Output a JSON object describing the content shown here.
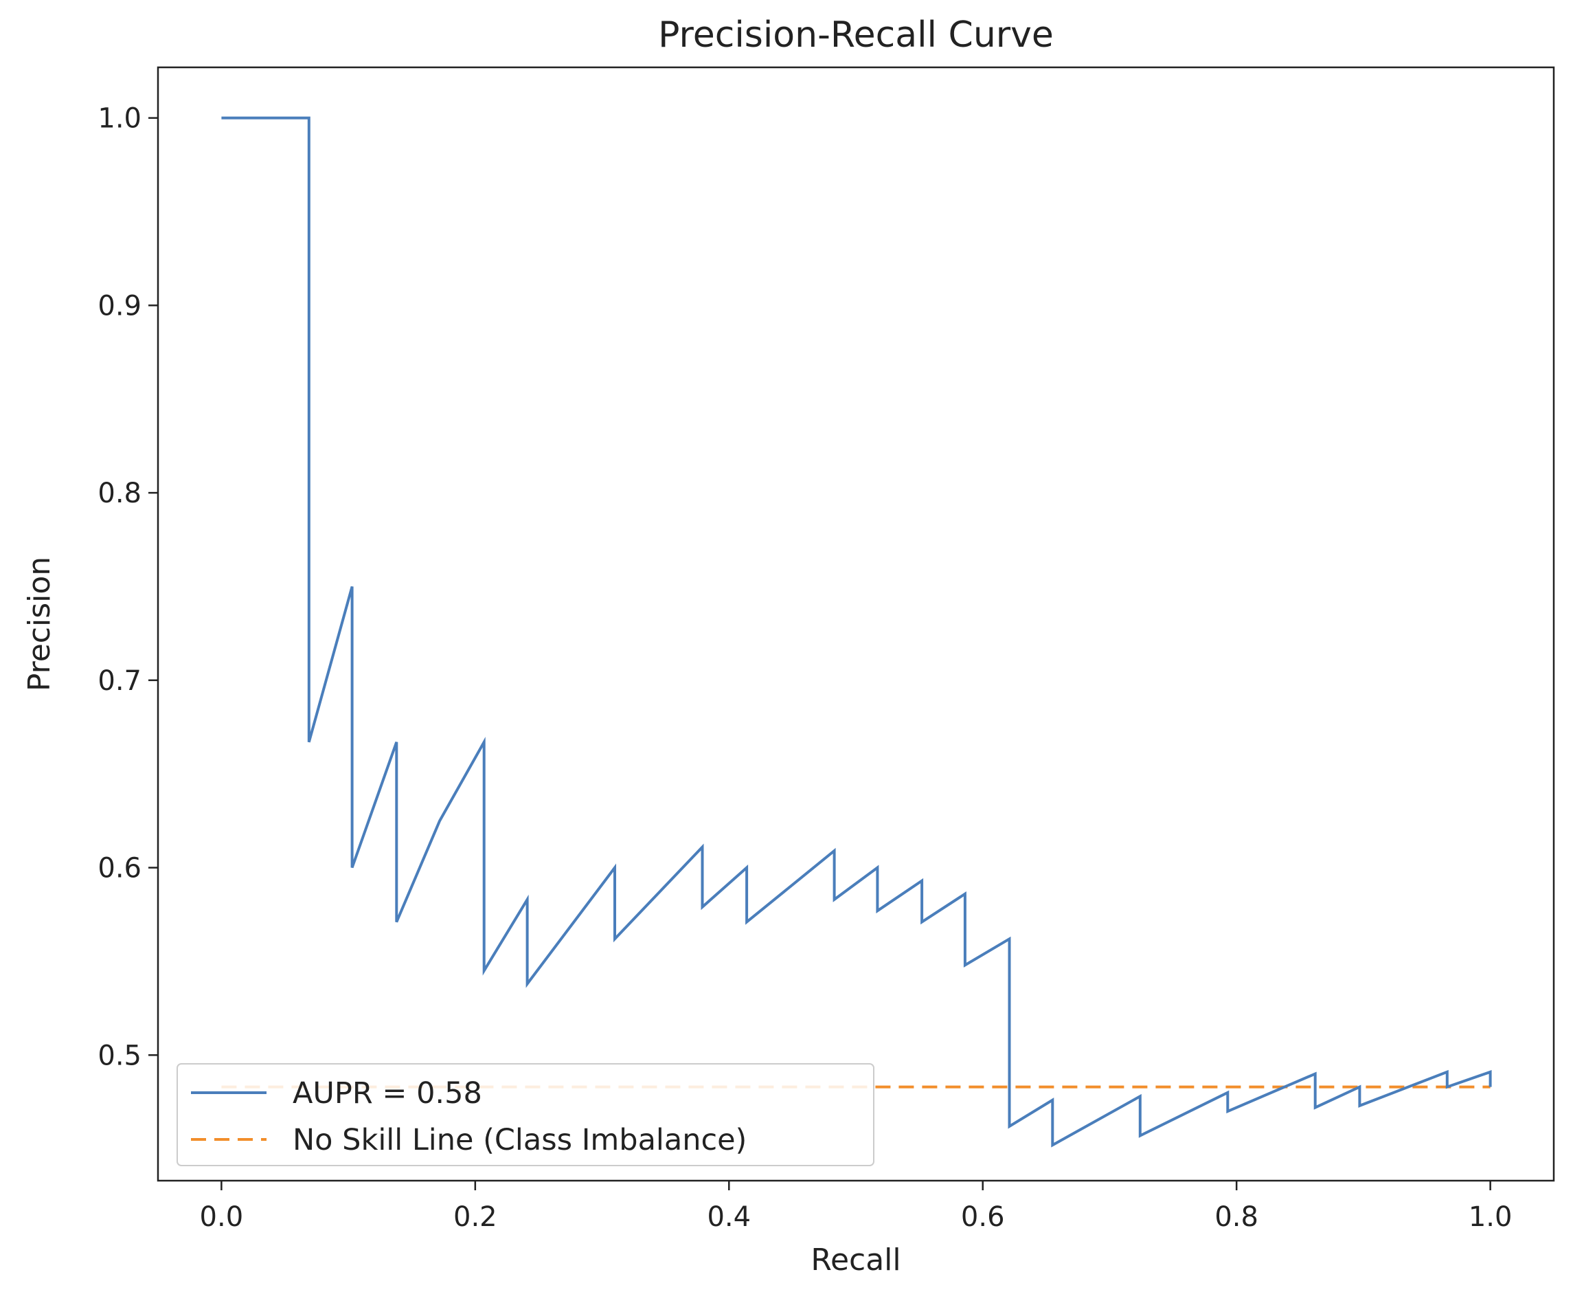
{
  "chart_data": {
    "type": "line",
    "title": "Precision-Recall Curve",
    "xlabel": "Recall",
    "ylabel": "Precision",
    "xlim": [
      -0.05,
      1.05
    ],
    "ylim": [
      0.433,
      1.027
    ],
    "xticks": [
      0.0,
      0.2,
      0.4,
      0.6,
      0.8,
      1.0
    ],
    "xtick_labels": [
      "0.0",
      "0.2",
      "0.4",
      "0.6",
      "0.8",
      "1.0"
    ],
    "yticks": [
      0.5,
      0.6,
      0.7,
      0.8,
      0.9,
      1.0
    ],
    "ytick_labels": [
      "0.5",
      "0.6",
      "0.7",
      "0.8",
      "0.9",
      "1.0"
    ],
    "grid": false,
    "legend_position": "lower-left",
    "series": [
      {
        "name": "AUPR = 0.58",
        "color": "#4a7ebb",
        "style": "solid",
        "x": [
          0.0,
          0.069,
          0.069,
          0.103,
          0.103,
          0.138,
          0.138,
          0.172,
          0.207,
          0.207,
          0.241,
          0.241,
          0.31,
          0.31,
          0.379,
          0.379,
          0.414,
          0.414,
          0.483,
          0.483,
          0.517,
          0.517,
          0.552,
          0.552,
          0.586,
          0.586,
          0.621,
          0.621,
          0.655,
          0.655,
          0.724,
          0.724,
          0.793,
          0.793,
          0.862,
          0.862,
          0.897,
          0.897,
          0.966,
          0.966,
          1.0,
          1.0
        ],
        "y": [
          1.0,
          1.0,
          0.667,
          0.75,
          0.6,
          0.667,
          0.571,
          0.625,
          0.667,
          0.545,
          0.583,
          0.538,
          0.6,
          0.562,
          0.611,
          0.579,
          0.6,
          0.571,
          0.609,
          0.583,
          0.6,
          0.577,
          0.593,
          0.571,
          0.586,
          0.548,
          0.562,
          0.462,
          0.476,
          0.452,
          0.478,
          0.457,
          0.48,
          0.47,
          0.49,
          0.472,
          0.483,
          0.473,
          0.491,
          0.483,
          0.491,
          0.483
        ]
      },
      {
        "name": "No Skill Line (Class Imbalance)",
        "color": "#f28e2b",
        "style": "dashed",
        "x": [
          0.0,
          1.0
        ],
        "y": [
          0.483,
          0.483
        ]
      }
    ]
  }
}
